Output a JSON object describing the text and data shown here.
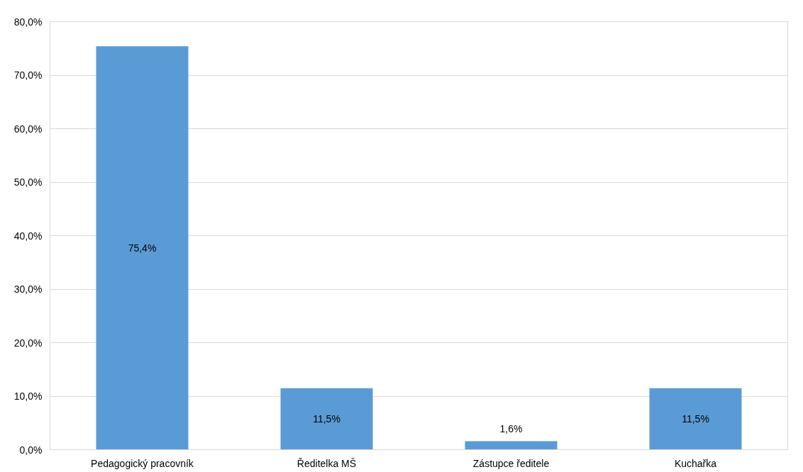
{
  "chart_data": {
    "type": "bar",
    "categories": [
      "Pedagogický pracovník",
      "Ředitelka MŠ",
      "Zástupce ředitele",
      "Kuchařka"
    ],
    "values": [
      75.4,
      11.5,
      1.6,
      11.5
    ],
    "value_labels": [
      "75,4%",
      "11,5%",
      "1,6%",
      "11,5%"
    ],
    "color": "#5b9bd5",
    "ylim": [
      0,
      80
    ],
    "yticks": [
      {
        "value": 0,
        "label": "0,0%"
      },
      {
        "value": 10,
        "label": "10,0%"
      },
      {
        "value": 20,
        "label": "20,0%"
      },
      {
        "value": 30,
        "label": "30,0%"
      },
      {
        "value": 40,
        "label": "40,0%"
      },
      {
        "value": 50,
        "label": "50,0%"
      },
      {
        "value": 60,
        "label": "60,0%"
      },
      {
        "value": 70,
        "label": "70,0%"
      },
      {
        "value": 80,
        "label": "80,0%"
      }
    ],
    "grid": "y"
  }
}
